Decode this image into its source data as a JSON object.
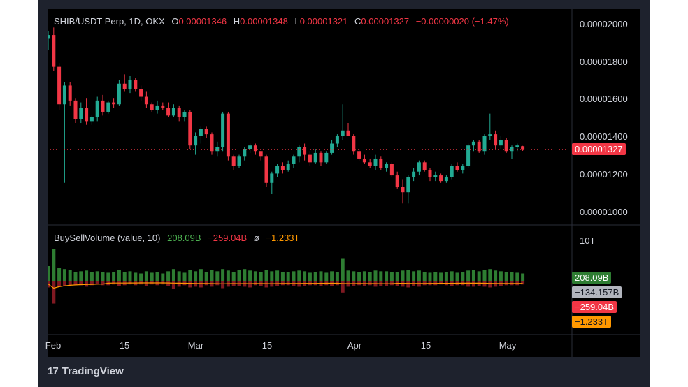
{
  "price_legend": {
    "symbol": "SHIB/USDT Perp, 1D, OKX",
    "o_label": "O",
    "o_value": "0.00001346",
    "h_label": "H",
    "h_value": "0.00001348",
    "l_label": "L",
    "l_value": "0.00001321",
    "c_label": "C",
    "c_value": "0.00001327",
    "change": "−0.00000020 (−1.47%)"
  },
  "volume_legend": {
    "name": "BuySellVolume (value, 10)",
    "buy": "208.09B",
    "sell": "−259.04B",
    "symbol": "ø",
    "delta": "−1.233T"
  },
  "price_axis": [
    "0.00002000",
    "0.00001800",
    "0.00001600",
    "0.00001400",
    "0.00001200",
    "0.00001000"
  ],
  "current_price_badge": "0.00001327",
  "volume_axis_label": "10T",
  "volume_badges": {
    "buy": "208.09B",
    "mid": "−134.157B",
    "sell": "−259.04B",
    "delta": "−1.233T"
  },
  "time_axis": [
    "Feb",
    "15",
    "Mar",
    "15",
    "Apr",
    "15",
    "May"
  ],
  "brand": {
    "logo": "17",
    "name": "TradingView"
  },
  "colors": {
    "up": "#22ab94",
    "down": "#f23645",
    "buy": "#2e7d32",
    "sell": "#801922",
    "ma": "#ff9800",
    "badge_price": "#f23645"
  },
  "chart_data": {
    "type": "candlestick",
    "title": "SHIB/USDT Perp, 1D, OKX",
    "ylim": [
      9.3e-06,
      2.1e-05
    ],
    "x_ticks": [
      "Feb",
      "15",
      "Mar",
      "15",
      "Apr",
      "15",
      "May"
    ],
    "candles": [
      {
        "o": 1.92,
        "h": 1.96,
        "l": 1.86,
        "c": 1.94
      },
      {
        "o": 1.94,
        "h": 1.98,
        "l": 1.75,
        "c": 1.77
      },
      {
        "o": 1.77,
        "h": 1.79,
        "l": 1.54,
        "c": 1.57
      },
      {
        "o": 1.57,
        "h": 1.69,
        "l": 1.15,
        "c": 1.67
      },
      {
        "o": 1.67,
        "h": 1.69,
        "l": 1.56,
        "c": 1.59
      },
      {
        "o": 1.59,
        "h": 1.6,
        "l": 1.47,
        "c": 1.49
      },
      {
        "o": 1.49,
        "h": 1.58,
        "l": 1.47,
        "c": 1.55
      },
      {
        "o": 1.55,
        "h": 1.6,
        "l": 1.46,
        "c": 1.48
      },
      {
        "o": 1.48,
        "h": 1.51,
        "l": 1.46,
        "c": 1.5
      },
      {
        "o": 1.5,
        "h": 1.61,
        "l": 1.48,
        "c": 1.59
      },
      {
        "o": 1.59,
        "h": 1.62,
        "l": 1.51,
        "c": 1.53
      },
      {
        "o": 1.53,
        "h": 1.59,
        "l": 1.52,
        "c": 1.58
      },
      {
        "o": 1.58,
        "h": 1.6,
        "l": 1.55,
        "c": 1.57
      },
      {
        "o": 1.57,
        "h": 1.7,
        "l": 1.56,
        "c": 1.68
      },
      {
        "o": 1.68,
        "h": 1.73,
        "l": 1.64,
        "c": 1.65
      },
      {
        "o": 1.65,
        "h": 1.72,
        "l": 1.63,
        "c": 1.7
      },
      {
        "o": 1.7,
        "h": 1.71,
        "l": 1.64,
        "c": 1.65
      },
      {
        "o": 1.65,
        "h": 1.67,
        "l": 1.59,
        "c": 1.61
      },
      {
        "o": 1.61,
        "h": 1.64,
        "l": 1.55,
        "c": 1.57
      },
      {
        "o": 1.57,
        "h": 1.58,
        "l": 1.53,
        "c": 1.54
      },
      {
        "o": 1.54,
        "h": 1.59,
        "l": 1.52,
        "c": 1.56
      },
      {
        "o": 1.56,
        "h": 1.58,
        "l": 1.54,
        "c": 1.55
      },
      {
        "o": 1.55,
        "h": 1.58,
        "l": 1.5,
        "c": 1.51
      },
      {
        "o": 1.51,
        "h": 1.57,
        "l": 1.5,
        "c": 1.55
      },
      {
        "o": 1.55,
        "h": 1.56,
        "l": 1.48,
        "c": 1.5
      },
      {
        "o": 1.5,
        "h": 1.54,
        "l": 1.48,
        "c": 1.53
      },
      {
        "o": 1.53,
        "h": 1.54,
        "l": 1.33,
        "c": 1.35
      },
      {
        "o": 1.35,
        "h": 1.42,
        "l": 1.3,
        "c": 1.4
      },
      {
        "o": 1.4,
        "h": 1.45,
        "l": 1.36,
        "c": 1.44
      },
      {
        "o": 1.44,
        "h": 1.45,
        "l": 1.39,
        "c": 1.41
      },
      {
        "o": 1.41,
        "h": 1.42,
        "l": 1.3,
        "c": 1.32
      },
      {
        "o": 1.32,
        "h": 1.37,
        "l": 1.29,
        "c": 1.34
      },
      {
        "o": 1.34,
        "h": 1.53,
        "l": 1.32,
        "c": 1.52
      },
      {
        "o": 1.52,
        "h": 1.53,
        "l": 1.27,
        "c": 1.29
      },
      {
        "o": 1.29,
        "h": 1.3,
        "l": 1.22,
        "c": 1.24
      },
      {
        "o": 1.24,
        "h": 1.3,
        "l": 1.23,
        "c": 1.29
      },
      {
        "o": 1.29,
        "h": 1.34,
        "l": 1.27,
        "c": 1.33
      },
      {
        "o": 1.33,
        "h": 1.36,
        "l": 1.31,
        "c": 1.35
      },
      {
        "o": 1.35,
        "h": 1.36,
        "l": 1.3,
        "c": 1.32
      },
      {
        "o": 1.32,
        "h": 1.32,
        "l": 1.27,
        "c": 1.29
      },
      {
        "o": 1.29,
        "h": 1.3,
        "l": 1.13,
        "c": 1.15
      },
      {
        "o": 1.15,
        "h": 1.21,
        "l": 1.09,
        "c": 1.2
      },
      {
        "o": 1.2,
        "h": 1.25,
        "l": 1.18,
        "c": 1.24
      },
      {
        "o": 1.24,
        "h": 1.26,
        "l": 1.2,
        "c": 1.22
      },
      {
        "o": 1.22,
        "h": 1.27,
        "l": 1.21,
        "c": 1.25
      },
      {
        "o": 1.25,
        "h": 1.3,
        "l": 1.23,
        "c": 1.29
      },
      {
        "o": 1.29,
        "h": 1.35,
        "l": 1.26,
        "c": 1.34
      },
      {
        "o": 1.34,
        "h": 1.36,
        "l": 1.27,
        "c": 1.3
      },
      {
        "o": 1.3,
        "h": 1.32,
        "l": 1.24,
        "c": 1.26
      },
      {
        "o": 1.26,
        "h": 1.33,
        "l": 1.25,
        "c": 1.31
      },
      {
        "o": 1.31,
        "h": 1.32,
        "l": 1.24,
        "c": 1.26
      },
      {
        "o": 1.26,
        "h": 1.32,
        "l": 1.25,
        "c": 1.31
      },
      {
        "o": 1.31,
        "h": 1.38,
        "l": 1.3,
        "c": 1.36
      },
      {
        "o": 1.36,
        "h": 1.41,
        "l": 1.34,
        "c": 1.4
      },
      {
        "o": 1.4,
        "h": 1.57,
        "l": 1.38,
        "c": 1.43
      },
      {
        "o": 1.43,
        "h": 1.47,
        "l": 1.4,
        "c": 1.4
      },
      {
        "o": 1.4,
        "h": 1.41,
        "l": 1.3,
        "c": 1.32
      },
      {
        "o": 1.32,
        "h": 1.33,
        "l": 1.27,
        "c": 1.28
      },
      {
        "o": 1.28,
        "h": 1.3,
        "l": 1.25,
        "c": 1.26
      },
      {
        "o": 1.26,
        "h": 1.28,
        "l": 1.23,
        "c": 1.24
      },
      {
        "o": 1.24,
        "h": 1.3,
        "l": 1.22,
        "c": 1.28
      },
      {
        "o": 1.28,
        "h": 1.29,
        "l": 1.22,
        "c": 1.23
      },
      {
        "o": 1.23,
        "h": 1.26,
        "l": 1.21,
        "c": 1.25
      },
      {
        "o": 1.25,
        "h": 1.26,
        "l": 1.18,
        "c": 1.19
      },
      {
        "o": 1.19,
        "h": 1.21,
        "l": 1.12,
        "c": 1.13
      },
      {
        "o": 1.13,
        "h": 1.17,
        "l": 1.04,
        "c": 1.1
      },
      {
        "o": 1.1,
        "h": 1.19,
        "l": 1.04,
        "c": 1.18
      },
      {
        "o": 1.18,
        "h": 1.23,
        "l": 1.16,
        "c": 1.21
      },
      {
        "o": 1.21,
        "h": 1.27,
        "l": 1.19,
        "c": 1.26
      },
      {
        "o": 1.26,
        "h": 1.27,
        "l": 1.21,
        "c": 1.22
      },
      {
        "o": 1.22,
        "h": 1.23,
        "l": 1.16,
        "c": 1.18
      },
      {
        "o": 1.18,
        "h": 1.21,
        "l": 1.16,
        "c": 1.19
      },
      {
        "o": 1.19,
        "h": 1.2,
        "l": 1.15,
        "c": 1.16
      },
      {
        "o": 1.16,
        "h": 1.19,
        "l": 1.15,
        "c": 1.18
      },
      {
        "o": 1.18,
        "h": 1.25,
        "l": 1.17,
        "c": 1.24
      },
      {
        "o": 1.24,
        "h": 1.26,
        "l": 1.21,
        "c": 1.22
      },
      {
        "o": 1.22,
        "h": 1.25,
        "l": 1.2,
        "c": 1.24
      },
      {
        "o": 1.24,
        "h": 1.36,
        "l": 1.23,
        "c": 1.35
      },
      {
        "o": 1.35,
        "h": 1.38,
        "l": 1.32,
        "c": 1.37
      },
      {
        "o": 1.37,
        "h": 1.38,
        "l": 1.31,
        "c": 1.32
      },
      {
        "o": 1.32,
        "h": 1.41,
        "l": 1.3,
        "c": 1.4
      },
      {
        "o": 1.4,
        "h": 1.52,
        "l": 1.38,
        "c": 1.41
      },
      {
        "o": 1.41,
        "h": 1.43,
        "l": 1.33,
        "c": 1.35
      },
      {
        "o": 1.35,
        "h": 1.4,
        "l": 1.33,
        "c": 1.38
      },
      {
        "o": 1.38,
        "h": 1.39,
        "l": 1.31,
        "c": 1.32
      },
      {
        "o": 1.32,
        "h": 1.35,
        "l": 1.28,
        "c": 1.34
      },
      {
        "o": 1.34,
        "h": 1.36,
        "l": 1.32,
        "c": 1.35
      },
      {
        "o": 1.346,
        "h": 1.348,
        "l": 1.321,
        "c": 1.327
      }
    ],
    "volume_buy": [
      2.0,
      4.3,
      1.8,
      1.6,
      1.5,
      1.2,
      1.3,
      1.4,
      1.2,
      1.3,
      1.2,
      1.1,
      1.2,
      1.5,
      1.2,
      1.3,
      1.1,
      1.0,
      1.3,
      1.1,
      1.2,
      1.0,
      1.3,
      1.6,
      1.3,
      1.1,
      1.5,
      1.3,
      1.6,
      1.2,
      1.5,
      1.3,
      1.6,
      1.4,
      1.2,
      1.5,
      1.6,
      1.4,
      1.3,
      1.2,
      1.5,
      1.3,
      1.4,
      1.2,
      1.2,
      1.3,
      1.4,
      1.3,
      1.1,
      1.2,
      1.3,
      1.1,
      1.3,
      1.2,
      3.0,
      1.4,
      1.3,
      1.2,
      1.3,
      1.2,
      1.4,
      1.3,
      1.3,
      1.2,
      1.2,
      1.4,
      1.5,
      1.3,
      1.4,
      1.2,
      1.1,
      1.2,
      1.1,
      1.2,
      1.3,
      1.1,
      1.2,
      1.4,
      1.5,
      1.3,
      1.5,
      1.6,
      1.4,
      1.3,
      1.2,
      1.2,
      1.1,
      1.0
    ],
    "volume_sell": [
      0.9,
      3.1,
      0.8,
      0.7,
      0.6,
      0.6,
      0.6,
      0.8,
      0.6,
      0.5,
      0.6,
      0.6,
      0.5,
      0.7,
      0.6,
      0.5,
      0.6,
      0.5,
      0.7,
      0.5,
      0.6,
      0.5,
      0.7,
      1.1,
      0.8,
      0.6,
      0.9,
      0.8,
      0.9,
      0.6,
      0.8,
      0.6,
      1.0,
      0.8,
      0.7,
      0.7,
      0.8,
      0.9,
      0.6,
      0.7,
      0.9,
      0.8,
      0.7,
      0.6,
      0.6,
      0.7,
      0.8,
      0.7,
      0.6,
      0.6,
      0.7,
      0.6,
      0.7,
      0.6,
      1.6,
      0.8,
      0.7,
      0.6,
      0.7,
      0.6,
      0.8,
      0.7,
      0.7,
      0.6,
      0.7,
      0.8,
      0.9,
      0.7,
      0.8,
      0.6,
      0.6,
      0.6,
      0.5,
      0.6,
      0.7,
      0.6,
      0.6,
      0.8,
      0.8,
      0.7,
      0.8,
      0.9,
      0.8,
      0.7,
      0.6,
      0.6,
      0.6,
      0.5
    ]
  }
}
